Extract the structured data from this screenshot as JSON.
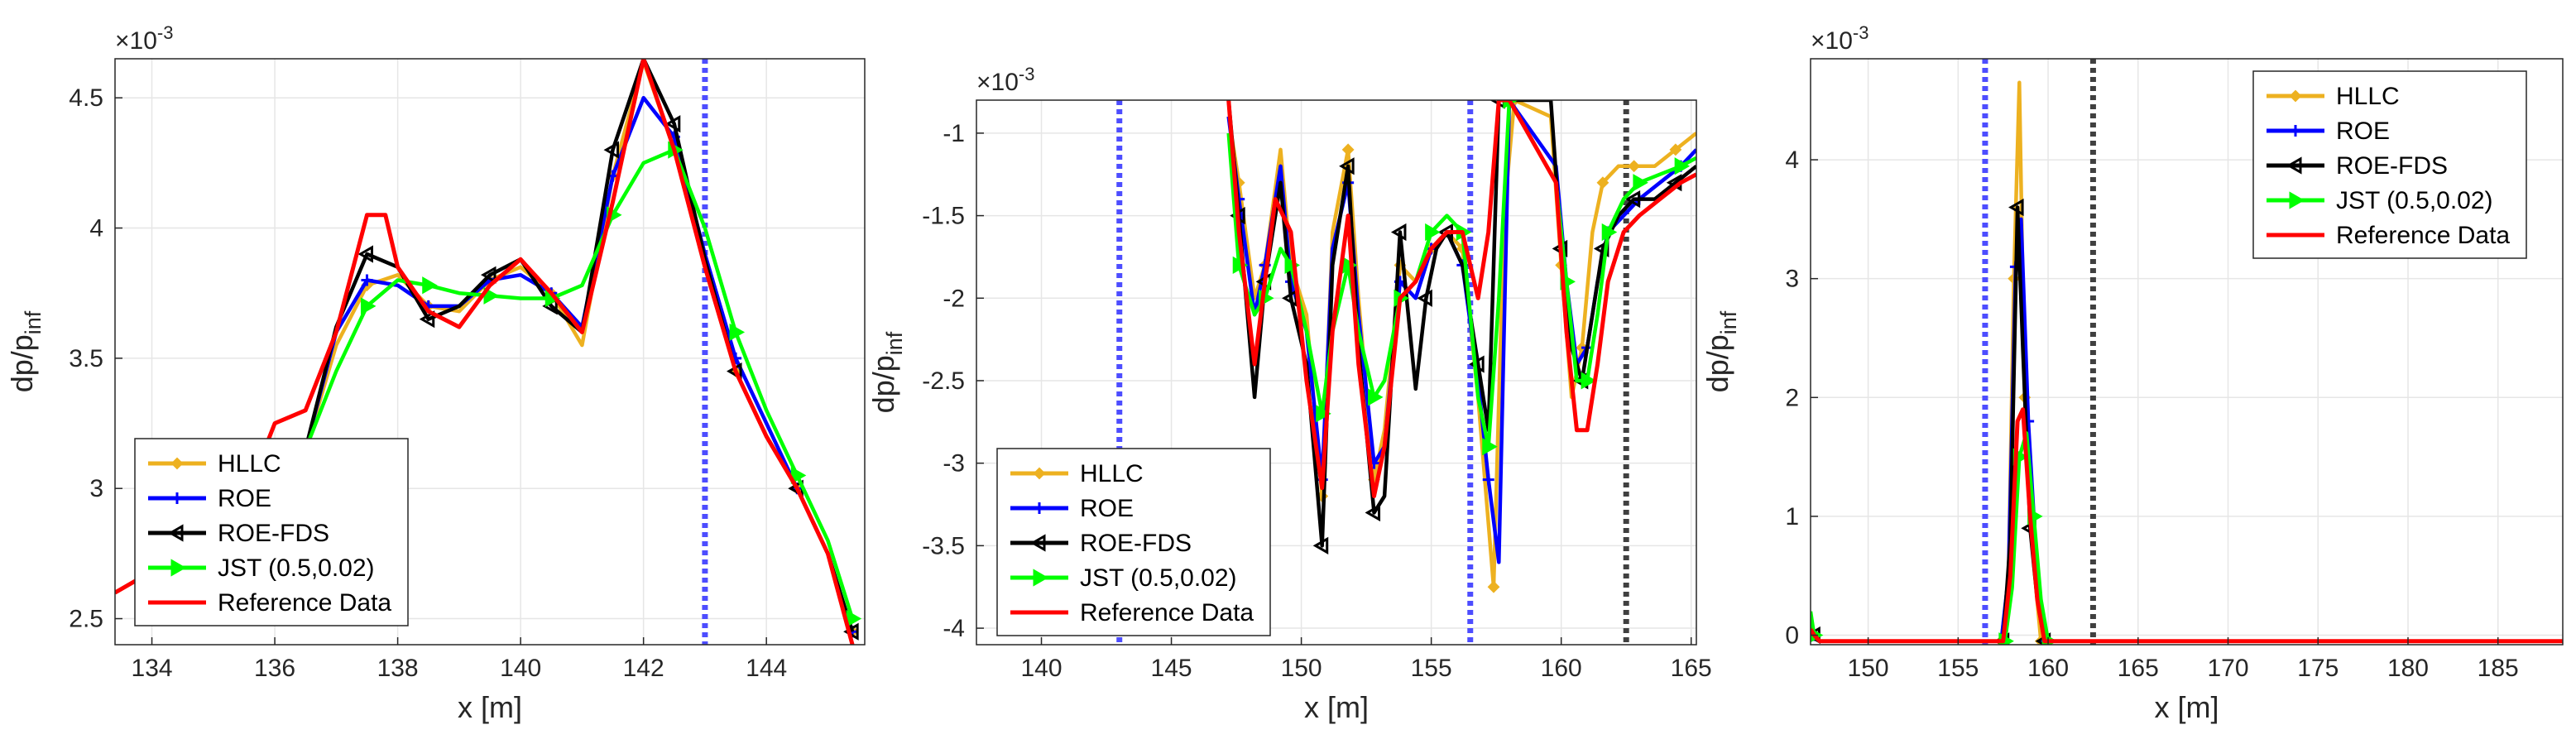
{
  "figure": {
    "colors": {
      "HLLC": "#EDB120",
      "ROE": "#0000FF",
      "ROE-FDS": "#000000",
      "JST": "#00FF00",
      "Reference": "#FF0000",
      "vline_blue": "#4D4DFF",
      "vline_gray": "#404040",
      "grid": "#E6E6E6"
    }
  },
  "chart_data": [
    {
      "type": "line",
      "xlabel": "x [m]",
      "ylabel": "dp/p",
      "ylabel_sub": "inf",
      "exponent_label": "×10",
      "exponent_power": "-3",
      "xlim": [
        133.4,
        145.6
      ],
      "ylim": [
        2.4,
        4.65
      ],
      "xticks": [
        134,
        136,
        138,
        140,
        142,
        144
      ],
      "xtick_labels": [
        "134",
        "136",
        "138",
        "140",
        "142",
        "144"
      ],
      "yticks": [
        2.5,
        3,
        3.5,
        4,
        4.5
      ],
      "ytick_labels": [
        "2.5",
        "3",
        "3.5",
        "4",
        "4.5"
      ],
      "grid": true,
      "legend_position": "bottom-left",
      "legend": [
        "HLLC",
        "ROE",
        "ROE-FDS",
        "JST (0.5,0.02)",
        "Reference Data"
      ],
      "vlines": [
        {
          "x": 143.0,
          "color": "blue"
        }
      ],
      "series": [
        {
          "name": "HLLC",
          "key": "HLLC",
          "x": [
            133.4,
            134.5,
            135.5,
            136.5,
            137,
            137.5,
            138,
            138.5,
            139,
            139.5,
            140,
            140.5,
            141,
            141.5,
            142,
            142.5,
            143,
            143.5,
            144,
            144.5,
            145,
            145.4
          ],
          "y": [
            2.6,
            2.75,
            2.95,
            3.15,
            3.55,
            3.78,
            3.82,
            3.7,
            3.68,
            3.8,
            3.85,
            3.75,
            3.55,
            4.2,
            4.64,
            4.3,
            3.85,
            3.45,
            3.2,
            3.0,
            2.75,
            2.45
          ]
        },
        {
          "name": "ROE",
          "key": "ROE",
          "x": [
            133.4,
            134.5,
            135.5,
            136.5,
            137,
            137.5,
            138,
            138.5,
            139,
            139.5,
            140,
            140.5,
            141,
            141.5,
            142,
            142.5,
            143,
            143.5,
            144,
            144.5,
            145,
            145.4
          ],
          "y": [
            2.6,
            2.75,
            2.95,
            3.15,
            3.6,
            3.8,
            3.78,
            3.7,
            3.7,
            3.8,
            3.82,
            3.75,
            3.62,
            4.2,
            4.5,
            4.35,
            3.9,
            3.5,
            3.25,
            3.0,
            2.75,
            2.45
          ]
        },
        {
          "name": "ROE-FDS",
          "key": "ROE-FDS",
          "x": [
            133.4,
            134.5,
            135.5,
            136.5,
            137,
            137.5,
            138,
            138.5,
            139,
            139.5,
            140,
            140.5,
            141,
            141.5,
            142,
            142.5,
            143,
            143.5,
            144,
            144.5,
            145,
            145.4
          ],
          "y": [
            2.6,
            2.75,
            2.95,
            3.15,
            3.62,
            3.9,
            3.85,
            3.65,
            3.7,
            3.82,
            3.88,
            3.7,
            3.6,
            4.3,
            4.65,
            4.4,
            3.88,
            3.45,
            3.2,
            3.0,
            2.75,
            2.45
          ]
        },
        {
          "name": "JST (0.5,0.02)",
          "key": "JST",
          "x": [
            133.4,
            134.5,
            135.5,
            136.5,
            137,
            137.5,
            138,
            138.5,
            139,
            139.5,
            140,
            140.5,
            141,
            141.5,
            142,
            142.5,
            143,
            143.5,
            144,
            144.5,
            145,
            145.4
          ],
          "y": [
            2.6,
            2.75,
            2.95,
            3.15,
            3.45,
            3.7,
            3.8,
            3.78,
            3.75,
            3.74,
            3.73,
            3.73,
            3.78,
            4.05,
            4.25,
            4.3,
            4.0,
            3.6,
            3.3,
            3.05,
            2.8,
            2.5
          ]
        },
        {
          "name": "Reference Data",
          "key": "Reference",
          "x": [
            133.4,
            134.5,
            135.5,
            136,
            136.5,
            137,
            137.5,
            137.8,
            138,
            138.5,
            139,
            139.5,
            140,
            140.5,
            141,
            141.5,
            142,
            142.5,
            143,
            143.5,
            144,
            144.5,
            145,
            145.4
          ],
          "y": [
            2.6,
            2.75,
            2.95,
            3.25,
            3.3,
            3.6,
            4.05,
            4.05,
            3.85,
            3.68,
            3.62,
            3.78,
            3.88,
            3.75,
            3.6,
            4.1,
            4.65,
            4.3,
            3.85,
            3.45,
            3.2,
            3.0,
            2.75,
            2.4
          ]
        }
      ]
    },
    {
      "type": "line",
      "xlabel": "x [m]",
      "ylabel": "dp/p",
      "ylabel_sub": "inf",
      "exponent_label": "×10",
      "exponent_power": "-3",
      "xlim": [
        137.5,
        165.2
      ],
      "ylim": [
        -4.1,
        -0.8
      ],
      "xticks": [
        140,
        145,
        150,
        155,
        160,
        165
      ],
      "xtick_labels": [
        "140",
        "145",
        "150",
        "155",
        "160",
        "165"
      ],
      "yticks": [
        -4,
        -3.5,
        -3,
        -2.5,
        -2,
        -1.5,
        -1
      ],
      "ytick_labels": [
        "-4",
        "-3.5",
        "-3",
        "-2.5",
        "-2",
        "-1.5",
        "-1"
      ],
      "grid": true,
      "legend_position": "bottom-left",
      "legend": [
        "HLLC",
        "ROE",
        "ROE-FDS",
        "JST (0.5,0.02)",
        "Reference Data"
      ],
      "vlines": [
        {
          "x": 143.0,
          "color": "blue"
        },
        {
          "x": 156.5,
          "color": "blue"
        },
        {
          "x": 162.5,
          "color": "gray"
        }
      ],
      "series": [
        {
          "name": "HLLC",
          "key": "HLLC",
          "x": [
            147.2,
            147.6,
            148.2,
            148.6,
            149.2,
            149.6,
            150.2,
            150.8,
            151.2,
            151.8,
            152.2,
            152.8,
            153.2,
            153.8,
            154.4,
            155,
            155.6,
            156.2,
            156.8,
            157.4,
            157.8,
            158.2,
            159.6,
            160,
            160.4,
            160.8,
            161.2,
            161.6,
            162.2,
            162.8,
            163.6,
            164.4,
            165.2
          ],
          "y": [
            -0.9,
            -1.3,
            -2.0,
            -1.8,
            -1.1,
            -1.8,
            -2.1,
            -3.2,
            -1.6,
            -1.1,
            -2.0,
            -3.1,
            -2.8,
            -1.8,
            -1.9,
            -1.7,
            -1.6,
            -1.7,
            -2.6,
            -3.75,
            -1.5,
            -0.8,
            -0.9,
            -1.8,
            -2.6,
            -2.3,
            -1.6,
            -1.3,
            -1.2,
            -1.2,
            -1.2,
            -1.1,
            -1.0
          ]
        },
        {
          "name": "ROE",
          "key": "ROE",
          "x": [
            147.2,
            147.6,
            148.2,
            148.6,
            149.2,
            149.6,
            150.2,
            150.8,
            151.2,
            151.8,
            152.2,
            152.8,
            153.2,
            153.8,
            154.4,
            155,
            155.6,
            156.2,
            156.8,
            157.2,
            157.6,
            158,
            159.8,
            160.2,
            160.6,
            161,
            161.4,
            161.8,
            162.4,
            163,
            163.8,
            164.6,
            165.2
          ],
          "y": [
            -0.9,
            -1.4,
            -2.1,
            -1.8,
            -1.2,
            -1.9,
            -2.2,
            -3.1,
            -1.7,
            -1.3,
            -2.1,
            -3.0,
            -2.9,
            -1.9,
            -2.0,
            -1.7,
            -1.6,
            -1.8,
            -2.5,
            -3.1,
            -3.6,
            -0.8,
            -1.2,
            -1.9,
            -2.4,
            -2.3,
            -1.9,
            -1.6,
            -1.5,
            -1.4,
            -1.3,
            -1.2,
            -1.1
          ]
        },
        {
          "name": "ROE-FDS",
          "key": "ROE-FDS",
          "x": [
            147.2,
            147.6,
            148.2,
            148.6,
            149.2,
            149.6,
            150.2,
            150.8,
            151.2,
            151.8,
            152.2,
            152.8,
            153.2,
            153.8,
            154.4,
            154.8,
            155.2,
            155.6,
            156.2,
            156.8,
            157.2,
            157.6,
            159.6,
            160,
            160.4,
            160.8,
            161.2,
            161.6,
            162.2,
            162.8,
            163.6,
            164.4,
            165.2
          ],
          "y": [
            -0.8,
            -1.5,
            -2.6,
            -1.9,
            -1.3,
            -2.0,
            -2.4,
            -3.5,
            -1.8,
            -1.2,
            -2.3,
            -3.3,
            -3.2,
            -1.6,
            -2.55,
            -2.0,
            -1.7,
            -1.6,
            -1.8,
            -2.4,
            -2.8,
            -0.8,
            -0.8,
            -1.7,
            -2.3,
            -2.5,
            -2.1,
            -1.7,
            -1.5,
            -1.4,
            -1.4,
            -1.3,
            -1.2
          ]
        },
        {
          "name": "JST (0.5,0.02)",
          "key": "JST",
          "x": [
            147.2,
            147.6,
            148.2,
            148.6,
            149.2,
            149.6,
            150.2,
            150.8,
            151.2,
            151.8,
            152.2,
            152.8,
            153.2,
            153.8,
            154.4,
            155,
            155.6,
            156.2,
            156.8,
            157.2,
            157.6,
            158,
            159.8,
            160.2,
            160.6,
            161,
            161.4,
            161.8,
            162.4,
            163,
            163.8,
            164.6,
            165.2
          ],
          "y": [
            -1.0,
            -1.8,
            -2.1,
            -2.0,
            -1.7,
            -1.8,
            -2.2,
            -2.7,
            -2.2,
            -1.8,
            -2.2,
            -2.6,
            -2.5,
            -2.0,
            -1.9,
            -1.6,
            -1.5,
            -1.6,
            -2.6,
            -2.9,
            -2.0,
            -0.8,
            -1.3,
            -1.9,
            -2.5,
            -2.5,
            -2.1,
            -1.6,
            -1.4,
            -1.3,
            -1.25,
            -1.2,
            -1.15
          ]
        },
        {
          "name": "Reference Data",
          "key": "Reference",
          "x": [
            147.2,
            147.6,
            148.2,
            148.6,
            149,
            149.6,
            150.2,
            150.8,
            151.2,
            151.8,
            152.2,
            152.8,
            153.2,
            153.8,
            154.4,
            155,
            155.6,
            156.2,
            156.8,
            157.2,
            157.6,
            158,
            159.8,
            160.2,
            160.6,
            161,
            161.4,
            161.8,
            162.4,
            163,
            163.8,
            164.6,
            165.2
          ],
          "y": [
            -0.8,
            -1.6,
            -2.4,
            -1.9,
            -1.4,
            -1.6,
            -2.5,
            -3.15,
            -2.2,
            -1.5,
            -2.4,
            -3.2,
            -2.9,
            -2.0,
            -1.9,
            -1.7,
            -1.6,
            -1.6,
            -2.0,
            -1.6,
            -0.8,
            -0.8,
            -1.3,
            -2.2,
            -2.8,
            -2.8,
            -2.4,
            -1.9,
            -1.6,
            -1.5,
            -1.4,
            -1.3,
            -1.25
          ]
        }
      ]
    },
    {
      "type": "line",
      "xlabel": "x [m]",
      "ylabel": "dp/p",
      "ylabel_sub": "inf",
      "exponent_label": "×10",
      "exponent_power": "-3",
      "xlim": [
        146.8,
        188.6
      ],
      "ylim": [
        -0.08,
        4.85
      ],
      "xticks": [
        150,
        155,
        160,
        165,
        170,
        175,
        180,
        185
      ],
      "xtick_labels": [
        "150",
        "155",
        "160",
        "165",
        "170",
        "175",
        "180",
        "185"
      ],
      "yticks": [
        0,
        1,
        2,
        3,
        4
      ],
      "ytick_labels": [
        "0",
        "1",
        "2",
        "3",
        "4"
      ],
      "grid": true,
      "legend_position": "top-right",
      "legend": [
        "HLLC",
        "ROE",
        "ROE-FDS",
        "JST (0.5,0.02)",
        "Reference Data"
      ],
      "vlines": [
        {
          "x": 156.5,
          "color": "blue"
        },
        {
          "x": 162.5,
          "color": "gray"
        }
      ],
      "series": [
        {
          "name": "HLLC",
          "key": "HLLC",
          "x": [
            146.8,
            147,
            147.3,
            157.4,
            157.8,
            158.1,
            158.4,
            158.7,
            159.2,
            159.6,
            188.6
          ],
          "y": [
            0.1,
            0.0,
            -0.05,
            -0.05,
            0.5,
            3.0,
            4.65,
            2.0,
            0.6,
            -0.05,
            -0.05
          ]
        },
        {
          "name": "ROE",
          "key": "ROE",
          "x": [
            146.8,
            147,
            147.3,
            157.4,
            157.8,
            158.2,
            158.5,
            158.9,
            159.4,
            159.8,
            188.6
          ],
          "y": [
            0.1,
            0.0,
            -0.05,
            -0.05,
            0.5,
            3.1,
            3.5,
            1.8,
            0.5,
            -0.05,
            -0.05
          ]
        },
        {
          "name": "ROE-FDS",
          "key": "ROE-FDS",
          "x": [
            146.8,
            147,
            147.3,
            157.5,
            157.9,
            158.3,
            158.6,
            159,
            159.4,
            159.8,
            188.6
          ],
          "y": [
            0.1,
            0.0,
            -0.05,
            -0.05,
            0.8,
            3.6,
            2.4,
            0.9,
            0.3,
            -0.05,
            -0.05
          ]
        },
        {
          "name": "JST (0.5,0.02)",
          "key": "JST",
          "x": [
            146.8,
            147,
            147.3,
            157.6,
            158,
            158.4,
            158.8,
            159.2,
            159.6,
            160,
            188.6
          ],
          "y": [
            0.2,
            0.0,
            -0.05,
            -0.05,
            0.4,
            1.5,
            1.7,
            1.0,
            0.3,
            -0.05,
            -0.05
          ]
        },
        {
          "name": "Reference Data",
          "key": "Reference",
          "x": [
            146.8,
            147,
            147.3,
            157.5,
            157.9,
            158.3,
            158.6,
            159,
            159.4,
            159.8,
            188.6
          ],
          "y": [
            0.05,
            0.0,
            -0.05,
            -0.05,
            0.5,
            1.8,
            1.9,
            1.0,
            0.3,
            -0.05,
            -0.05
          ]
        }
      ]
    }
  ]
}
